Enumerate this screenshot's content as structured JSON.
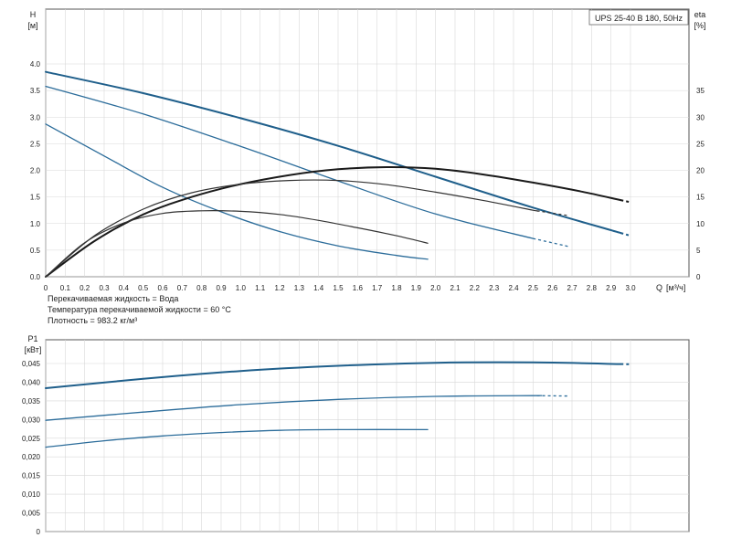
{
  "chart_data": [
    {
      "type": "line",
      "model_label": "UPS 25-40 B 180, 50Hz",
      "ylabel": "H",
      "yunit": "[м]",
      "y2label": "eta",
      "y2unit": "[%]",
      "xlabel": "Q",
      "xunit": "[м³/ч]",
      "xlim": [
        0,
        3.0
      ],
      "ylim": [
        0,
        4.0
      ],
      "y2lim": [
        0,
        35
      ],
      "xticks": [
        "0",
        "0.1",
        "0.2",
        "0.3",
        "0.4",
        "0.5",
        "0.6",
        "0.7",
        "0.8",
        "0.9",
        "1.0",
        "1.1",
        "1.2",
        "1.3",
        "1.4",
        "1.5",
        "1.6",
        "1.7",
        "1.8",
        "1.9",
        "2.0",
        "2.1",
        "2.2",
        "2.3",
        "2.4",
        "2.5",
        "2.6",
        "2.7",
        "2.8",
        "2.9",
        "3.0"
      ],
      "yticks": [
        "0.0",
        "0.5",
        "1.0",
        "1.5",
        "2.0",
        "2.5",
        "3.0",
        "3.5",
        "4.0"
      ],
      "y2ticks": [
        "0",
        "5",
        "10",
        "15",
        "20",
        "25",
        "30",
        "35"
      ],
      "grid": true,
      "series": [
        {
          "kind": "head",
          "color": "#1f5f8b",
          "dashed_from": 2.95,
          "x": [
            0,
            0.5,
            1.0,
            1.5,
            2.0,
            2.5,
            3.0
          ],
          "y": [
            3.85,
            3.45,
            2.98,
            2.46,
            1.88,
            1.3,
            0.77
          ]
        },
        {
          "kind": "head",
          "color": "#2b6c9a",
          "dashed_from": 2.5,
          "x": [
            0,
            0.5,
            1.0,
            1.5,
            2.0,
            2.5,
            2.68
          ],
          "y": [
            3.58,
            3.06,
            2.45,
            1.8,
            1.18,
            0.72,
            0.57
          ]
        },
        {
          "kind": "head",
          "color": "#2b6c9a",
          "x": [
            0,
            0.3,
            0.6,
            0.9,
            1.2,
            1.5,
            1.8,
            1.96
          ],
          "y": [
            2.87,
            2.27,
            1.68,
            1.22,
            0.85,
            0.58,
            0.4,
            0.33
          ]
        },
        {
          "kind": "eta",
          "color": "#1a1a1a",
          "dashed_from": 2.95,
          "x": [
            0,
            0.25,
            0.5,
            0.75,
            1.0,
            1.25,
            1.5,
            1.75,
            2.0,
            2.25,
            2.5,
            2.75,
            3.0
          ],
          "y": [
            0,
            6.7,
            11.7,
            15.0,
            17.4,
            19.1,
            20.2,
            20.6,
            20.3,
            19.2,
            17.7,
            16.0,
            14.0
          ]
        },
        {
          "kind": "eta",
          "color": "#333333",
          "dashed_from": 2.52,
          "x": [
            0,
            0.25,
            0.5,
            0.75,
            1.0,
            1.25,
            1.5,
            1.75,
            2.0,
            2.25,
            2.5,
            2.68
          ],
          "y": [
            0,
            7.7,
            12.7,
            15.8,
            17.4,
            18.1,
            18.1,
            17.3,
            15.9,
            14.3,
            12.5,
            11.5
          ]
        },
        {
          "kind": "eta",
          "color": "#333333",
          "x": [
            0,
            0.2,
            0.4,
            0.6,
            0.8,
            1.0,
            1.2,
            1.4,
            1.6,
            1.8,
            1.96
          ],
          "y": [
            0,
            6.4,
            10.1,
            11.9,
            12.4,
            12.3,
            11.7,
            10.6,
            9.2,
            7.7,
            6.3
          ]
        }
      ]
    },
    {
      "type": "line",
      "ylabel": "P1",
      "yunit": "[кВт]",
      "xlim": [
        0,
        3.0
      ],
      "ylim": [
        0,
        0.045
      ],
      "yticks": [
        "0",
        "0,005",
        "0,010",
        "0,015",
        "0,020",
        "0,025",
        "0,030",
        "0,035",
        "0,040",
        "0,045"
      ],
      "grid": true,
      "series": [
        {
          "color": "#1f5f8b",
          "dashed_from": 2.95,
          "x": [
            0,
            0.5,
            1.0,
            1.5,
            2.0,
            2.5,
            3.0
          ],
          "y": [
            0.0384,
            0.0409,
            0.043,
            0.0444,
            0.0452,
            0.0453,
            0.0448
          ]
        },
        {
          "color": "#2b6c9a",
          "dashed_from": 2.52,
          "x": [
            0,
            0.5,
            1.0,
            1.5,
            2.0,
            2.5,
            2.68
          ],
          "y": [
            0.0298,
            0.032,
            0.034,
            0.0354,
            0.0362,
            0.0364,
            0.0363
          ]
        },
        {
          "color": "#2b6c9a",
          "x": [
            0,
            0.3,
            0.6,
            0.9,
            1.2,
            1.5,
            1.96
          ],
          "y": [
            0.0226,
            0.0243,
            0.0256,
            0.0265,
            0.0271,
            0.0273,
            0.0273
          ]
        }
      ]
    }
  ],
  "notes": {
    "liquid": "Перекачиваемая жидкость = Вода",
    "temperature": "Температура перекачиваемой жидкости = 60 °C",
    "density": "Плотность = 983.2 кг/м³"
  }
}
